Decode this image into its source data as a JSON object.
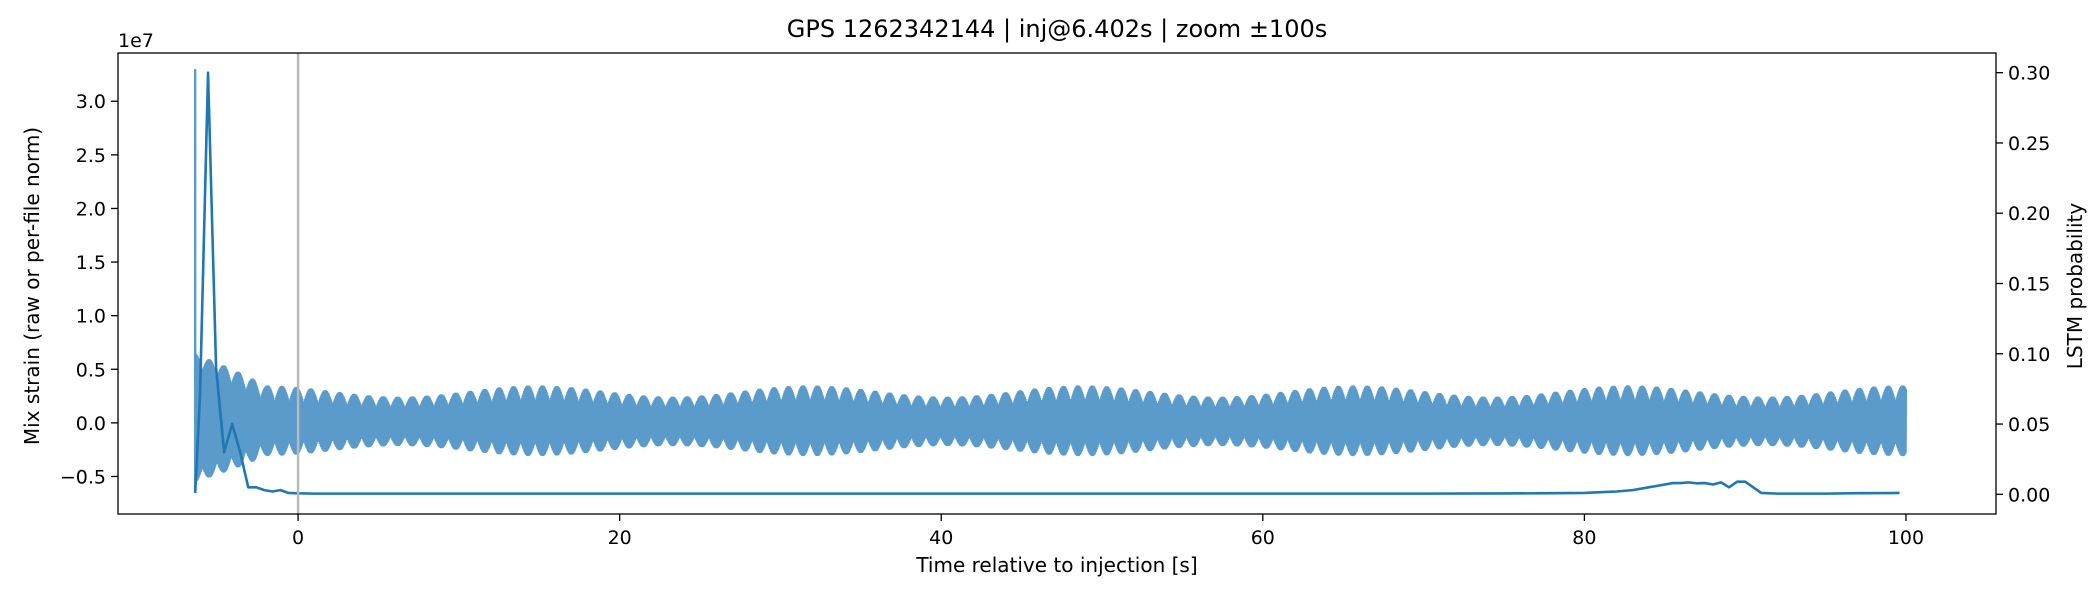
{
  "chart_data": {
    "type": "line",
    "title": "GPS 1262342144 | inj@6.402s | zoom ±100s",
    "xlabel": "Time relative to injection [s]",
    "ylabel_left": "Mix strain (raw or per-file norm)",
    "ylabel_right": "LSTM probability",
    "left_axis_offset": "1e7",
    "xlim": [
      -11.2,
      105.6
    ],
    "ylim_left": [
      -8.5,
      34.5
    ],
    "ylim_right": [
      -0.014,
      0.314
    ],
    "x_ticks": [
      0,
      20,
      40,
      60,
      80,
      100
    ],
    "x_tick_labels": [
      "0",
      "20",
      "40",
      "60",
      "80",
      "100"
    ],
    "y_left_ticks": [
      -5,
      0,
      5,
      10,
      15,
      20,
      25,
      30
    ],
    "y_left_tick_labels": [
      "−0.5",
      "0.0",
      "0.5",
      "1.0",
      "1.5",
      "2.0",
      "2.5",
      "3.0"
    ],
    "y_right_ticks": [
      0,
      0.05,
      0.1,
      0.15,
      0.2,
      0.25,
      0.3
    ],
    "y_right_tick_labels": [
      "0.00",
      "0.05",
      "0.10",
      "0.15",
      "0.20",
      "0.25",
      "0.30"
    ],
    "injection_marker_x": 0,
    "grid": false,
    "colors": {
      "strain": "#5b9bcb",
      "probability": "#1f77b4",
      "marker": "#b8b8b8"
    },
    "strain": {
      "x_start": -6.4,
      "x_end": 100,
      "spike_x": -6.4,
      "spike_top": 33,
      "spike_bottom": -6.5,
      "typical_envelope": [
        -3.1,
        3.5
      ],
      "early_envelope": [
        -6.0,
        7.0
      ]
    },
    "probability": {
      "x": [
        -6.4,
        -6.1,
        -5.6,
        -5.1,
        -4.6,
        -4.1,
        -3.6,
        -3.1,
        -2.6,
        -2.1,
        -1.6,
        -1.1,
        -0.6,
        0,
        1,
        3,
        5,
        10,
        20,
        40,
        60,
        70,
        75,
        78,
        80,
        81,
        82,
        83,
        84,
        85,
        85.5,
        86,
        86.5,
        87,
        87.5,
        88,
        88.5,
        89,
        89.5,
        90,
        90.5,
        91,
        92,
        95,
        97,
        99,
        99.6
      ],
      "y": [
        0.001,
        0.07,
        0.3,
        0.09,
        0.03,
        0.05,
        0.03,
        0.005,
        0.005,
        0.003,
        0.002,
        0.003,
        0.001,
        0.0007,
        0.0005,
        0.0005,
        0.0005,
        0.0005,
        0.0005,
        0.0005,
        0.0005,
        0.0005,
        0.0006,
        0.0008,
        0.001,
        0.0015,
        0.002,
        0.003,
        0.005,
        0.007,
        0.008,
        0.008,
        0.0085,
        0.0078,
        0.008,
        0.007,
        0.0085,
        0.005,
        0.009,
        0.009,
        0.005,
        0.001,
        0.0005,
        0.0005,
        0.0008,
        0.0009,
        0.001
      ]
    }
  }
}
